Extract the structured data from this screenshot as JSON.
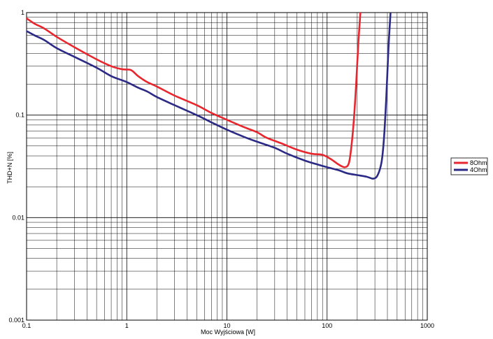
{
  "chart_data": {
    "type": "line",
    "xlabel": "Moc Wyjściowa [W]",
    "ylabel": "THD+N [%]",
    "xscale": "log",
    "yscale": "log",
    "xlim": [
      0.1,
      1000
    ],
    "ylim": [
      0.001,
      1
    ],
    "grid": true,
    "legend_position": "right",
    "x_tick_labels": [
      "0.1",
      "1",
      "10",
      "100",
      "1000"
    ],
    "y_tick_labels": [
      "0.001",
      "0.01",
      "0.1",
      "1"
    ],
    "series": [
      {
        "name": "8Ohm",
        "color": "#e8262d",
        "x": [
          0.1,
          0.12,
          0.15,
          0.2,
          0.3,
          0.5,
          0.7,
          0.9,
          1.1,
          1.3,
          1.6,
          2,
          3,
          5,
          7,
          10,
          15,
          20,
          25,
          35,
          50,
          70,
          90,
          110,
          130,
          150,
          165,
          175,
          185,
          195,
          205,
          215
        ],
        "y": [
          0.88,
          0.78,
          0.7,
          0.58,
          0.46,
          0.35,
          0.3,
          0.28,
          0.275,
          0.24,
          0.21,
          0.19,
          0.155,
          0.125,
          0.105,
          0.09,
          0.076,
          0.068,
          0.06,
          0.053,
          0.046,
          0.042,
          0.041,
          0.037,
          0.033,
          0.031,
          0.034,
          0.05,
          0.09,
          0.2,
          0.5,
          1.0
        ]
      },
      {
        "name": "4Ohm",
        "color": "#2b2a86",
        "x": [
          0.1,
          0.12,
          0.15,
          0.2,
          0.3,
          0.5,
          0.7,
          1,
          1.3,
          1.6,
          2,
          3,
          5,
          7,
          10,
          15,
          20,
          30,
          40,
          60,
          80,
          100,
          130,
          160,
          200,
          250,
          290,
          320,
          350,
          370,
          390,
          410,
          430
        ],
        "y": [
          0.66,
          0.6,
          0.54,
          0.45,
          0.37,
          0.29,
          0.24,
          0.21,
          0.185,
          0.17,
          0.15,
          0.125,
          0.1,
          0.085,
          0.072,
          0.061,
          0.055,
          0.048,
          0.042,
          0.036,
          0.033,
          0.031,
          0.029,
          0.027,
          0.026,
          0.025,
          0.024,
          0.026,
          0.035,
          0.06,
          0.15,
          0.45,
          1.0
        ]
      }
    ]
  }
}
